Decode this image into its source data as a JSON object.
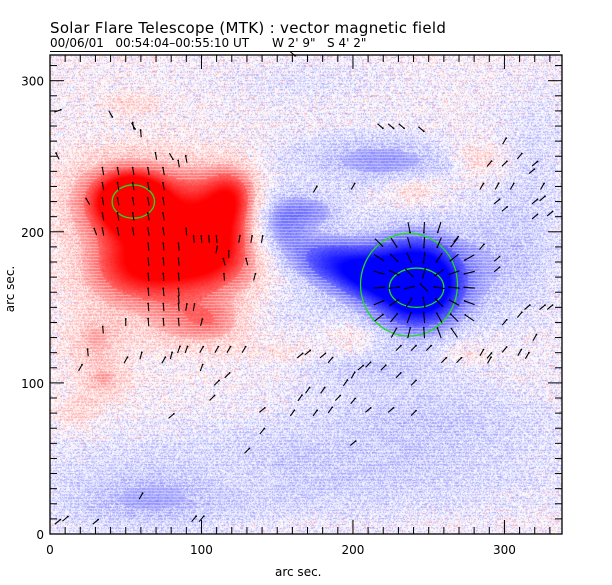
{
  "header": {
    "title": "Solar Flare Telescope (MTK) : vector magnetic field",
    "date": "00/06/01",
    "time_range": "00:54:04–00:55:10 UT",
    "position_w": "W 2' 9\"",
    "position_s": "S 4' 2\""
  },
  "chart_data": {
    "type": "heatmap",
    "title": "Solar Flare Telescope (MTK) : vector magnetic field",
    "xlabel": "arc sec.",
    "ylabel": "arc sec.",
    "xlim": [
      0,
      338
    ],
    "ylim": [
      0,
      317
    ],
    "x_ticks": [
      {
        "value": 0,
        "label": "0"
      },
      {
        "value": 100,
        "label": "100"
      },
      {
        "value": 200,
        "label": "200"
      },
      {
        "value": 300,
        "label": "300"
      }
    ],
    "y_ticks": [
      {
        "value": 0,
        "label": "0"
      },
      {
        "value": 100,
        "label": "100"
      },
      {
        "value": 200,
        "label": "200"
      },
      {
        "value": 300,
        "label": "300"
      }
    ],
    "minor_tick_step": 10,
    "colors": {
      "positive": "#ff0000",
      "negative": "#0000ff",
      "contour": "#22dd22",
      "arrow": "#000000",
      "background": "#ffffff"
    },
    "positive_polarity_regions": [
      {
        "x": 55,
        "y": 220,
        "sx": 14,
        "sy": 12,
        "strength": 1.0
      },
      {
        "x": 40,
        "y": 222,
        "sx": 22,
        "sy": 18,
        "strength": 0.55
      },
      {
        "x": 75,
        "y": 215,
        "sx": 30,
        "sy": 22,
        "strength": 0.6
      },
      {
        "x": 110,
        "y": 200,
        "sx": 22,
        "sy": 25,
        "strength": 0.6
      },
      {
        "x": 55,
        "y": 175,
        "sx": 25,
        "sy": 18,
        "strength": 0.7
      },
      {
        "x": 95,
        "y": 180,
        "sx": 30,
        "sy": 18,
        "strength": 0.55
      },
      {
        "x": 120,
        "y": 225,
        "sx": 12,
        "sy": 14,
        "strength": 0.5
      },
      {
        "x": 85,
        "y": 140,
        "sx": 18,
        "sy": 12,
        "strength": 0.35
      },
      {
        "x": 30,
        "y": 130,
        "sx": 14,
        "sy": 12,
        "strength": 0.35
      },
      {
        "x": 35,
        "y": 102,
        "sx": 12,
        "sy": 10,
        "strength": 0.35
      },
      {
        "x": 18,
        "y": 80,
        "sx": 10,
        "sy": 8,
        "strength": 0.25
      },
      {
        "x": 110,
        "y": 140,
        "sx": 14,
        "sy": 10,
        "strength": 0.35
      },
      {
        "x": 240,
        "y": 228,
        "sx": 14,
        "sy": 7,
        "strength": 0.3
      },
      {
        "x": 283,
        "y": 248,
        "sx": 12,
        "sy": 8,
        "strength": 0.3
      },
      {
        "x": 55,
        "y": 285,
        "sx": 14,
        "sy": 6,
        "strength": 0.2
      },
      {
        "x": 275,
        "y": 120,
        "sx": 12,
        "sy": 6,
        "strength": 0.2
      },
      {
        "x": 150,
        "y": 120,
        "sx": 20,
        "sy": 6,
        "strength": 0.15
      },
      {
        "x": 200,
        "y": 130,
        "sx": 10,
        "sy": 6,
        "strength": 0.2
      },
      {
        "x": 120,
        "y": 40,
        "sx": 20,
        "sy": 8,
        "strength": 0.12
      }
    ],
    "negative_polarity_regions": [
      {
        "x": 245,
        "y": 165,
        "sx": 20,
        "sy": 20,
        "strength": 1.0
      },
      {
        "x": 232,
        "y": 170,
        "sx": 26,
        "sy": 24,
        "strength": 0.55
      },
      {
        "x": 150,
        "y": 205,
        "sx": 14,
        "sy": 16,
        "strength": 0.6
      },
      {
        "x": 180,
        "y": 182,
        "sx": 18,
        "sy": 12,
        "strength": 0.6
      },
      {
        "x": 205,
        "y": 172,
        "sx": 16,
        "sy": 12,
        "strength": 0.55
      },
      {
        "x": 175,
        "y": 215,
        "sx": 14,
        "sy": 8,
        "strength": 0.35
      },
      {
        "x": 230,
        "y": 245,
        "sx": 30,
        "sy": 12,
        "strength": 0.3
      },
      {
        "x": 300,
        "y": 180,
        "sx": 25,
        "sy": 30,
        "strength": 0.28
      },
      {
        "x": 190,
        "y": 250,
        "sx": 40,
        "sy": 12,
        "strength": 0.22
      },
      {
        "x": 170,
        "y": 40,
        "sx": 120,
        "sy": 22,
        "strength": 0.28
      },
      {
        "x": 60,
        "y": 20,
        "sx": 40,
        "sy": 14,
        "strength": 0.25
      },
      {
        "x": 250,
        "y": 80,
        "sx": 60,
        "sy": 18,
        "strength": 0.22
      },
      {
        "x": 210,
        "y": 110,
        "sx": 40,
        "sy": 10,
        "strength": 0.2
      },
      {
        "x": 170,
        "y": 300,
        "sx": 50,
        "sy": 12,
        "strength": 0.12
      },
      {
        "x": 320,
        "y": 250,
        "sx": 20,
        "sy": 40,
        "strength": 0.15
      },
      {
        "x": 160,
        "y": 150,
        "sx": 20,
        "sy": 10,
        "strength": 0.15
      }
    ],
    "contours": [
      {
        "polarity": "positive",
        "cx": 55,
        "cy": 220,
        "rx": 14,
        "ry": 11
      },
      {
        "polarity": "negative",
        "cx": 242,
        "cy": 163,
        "rx": 18,
        "ry": 13
      },
      {
        "polarity": "negative",
        "cx": 237,
        "cy": 165,
        "rx": 32,
        "ry": 34
      }
    ],
    "arrow_fields": [
      {
        "kind": "radial-inward",
        "cx": 245,
        "cy": 165,
        "rx": 38,
        "ry": 42,
        "step": 10,
        "length": 7
      },
      {
        "kind": "uniform",
        "angle": 100,
        "x0": 35,
        "x1": 75,
        "y0": 200,
        "y1": 240,
        "step": 10,
        "length": 5
      },
      {
        "kind": "uniform",
        "angle": 95,
        "x0": 65,
        "x1": 85,
        "y0": 140,
        "y1": 190,
        "step": 10,
        "length": 5
      }
    ],
    "arrows": [
      [
        5,
        250,
        115
      ],
      [
        25,
        220,
        120
      ],
      [
        30,
        200,
        110
      ],
      [
        90,
        200,
        95
      ],
      [
        95,
        195,
        95
      ],
      [
        100,
        195,
        95
      ],
      [
        105,
        195,
        95
      ],
      [
        110,
        195,
        95
      ],
      [
        125,
        195,
        80
      ],
      [
        133,
        195,
        80
      ],
      [
        140,
        195,
        80
      ],
      [
        110,
        188,
        80
      ],
      [
        115,
        180,
        105
      ],
      [
        130,
        180,
        105
      ],
      [
        135,
        170,
        75
      ],
      [
        85,
        155,
        95
      ],
      [
        90,
        150,
        80
      ],
      [
        95,
        150,
        80
      ],
      [
        100,
        140,
        75
      ],
      [
        115,
        170,
        95
      ],
      [
        118,
        185,
        90
      ],
      [
        40,
        278,
        300
      ],
      [
        55,
        270,
        300
      ],
      [
        80,
        250,
        300
      ],
      [
        50,
        140,
        90
      ],
      [
        35,
        135,
        95
      ],
      [
        25,
        120,
        95
      ],
      [
        20,
        110,
        60
      ],
      [
        50,
        115,
        60
      ],
      [
        75,
        115,
        60
      ],
      [
        85,
        122,
        70
      ],
      [
        90,
        122,
        70
      ],
      [
        100,
        122,
        60
      ],
      [
        110,
        122,
        60
      ],
      [
        118,
        122,
        60
      ],
      [
        128,
        122,
        60
      ],
      [
        60,
        118,
        75
      ],
      [
        80,
        118,
        75
      ],
      [
        100,
        110,
        70
      ],
      [
        110,
        100,
        45
      ],
      [
        117,
        105,
        45
      ],
      [
        107,
        90,
        45
      ],
      [
        165,
        118,
        40
      ],
      [
        170,
        120,
        40
      ],
      [
        180,
        118,
        40
      ],
      [
        185,
        115,
        50
      ],
      [
        230,
        123,
        45
      ],
      [
        240,
        123,
        45
      ],
      [
        250,
        123,
        45
      ],
      [
        260,
        115,
        45
      ],
      [
        270,
        115,
        45
      ],
      [
        285,
        120,
        60
      ],
      [
        290,
        115,
        60
      ],
      [
        195,
        100,
        55
      ],
      [
        200,
        105,
        60
      ],
      [
        205,
        110,
        40
      ],
      [
        210,
        112,
        45
      ],
      [
        220,
        110,
        45
      ],
      [
        230,
        105,
        45
      ],
      [
        240,
        100,
        45
      ],
      [
        165,
        90,
        55
      ],
      [
        170,
        95,
        55
      ],
      [
        180,
        95,
        55
      ],
      [
        190,
        90,
        45
      ],
      [
        140,
        82,
        40
      ],
      [
        160,
        80,
        55
      ],
      [
        175,
        80,
        55
      ],
      [
        185,
        82,
        55
      ],
      [
        200,
        88,
        50
      ],
      [
        210,
        82,
        40
      ],
      [
        225,
        82,
        40
      ],
      [
        240,
        80,
        45
      ],
      [
        80,
        78,
        40
      ],
      [
        140,
        68,
        50
      ],
      [
        130,
        55,
        45
      ],
      [
        200,
        60,
        40
      ],
      [
        218,
        270,
        320
      ],
      [
        225,
        270,
        320
      ],
      [
        232,
        270,
        320
      ],
      [
        245,
        268,
        320
      ],
      [
        160,
        318,
        320
      ],
      [
        300,
        260,
        60
      ],
      [
        310,
        250,
        50
      ],
      [
        290,
        245,
        50
      ],
      [
        300,
        245,
        45
      ],
      [
        320,
        245,
        40
      ],
      [
        318,
        240,
        40
      ],
      [
        285,
        230,
        60
      ],
      [
        295,
        230,
        60
      ],
      [
        305,
        230,
        60
      ],
      [
        325,
        230,
        60
      ],
      [
        295,
        220,
        40
      ],
      [
        300,
        215,
        40
      ],
      [
        320,
        220,
        40
      ],
      [
        325,
        222,
        40
      ],
      [
        320,
        210,
        40
      ],
      [
        330,
        212,
        40
      ],
      [
        315,
        150,
        40
      ],
      [
        325,
        150,
        40
      ],
      [
        330,
        150,
        40
      ],
      [
        295,
        175,
        40
      ],
      [
        295,
        182,
        40
      ],
      [
        285,
        190,
        50
      ],
      [
        268,
        195,
        50
      ],
      [
        175,
        228,
        60
      ],
      [
        200,
        230,
        60
      ],
      [
        290,
        118,
        50
      ],
      [
        300,
        122,
        50
      ],
      [
        310,
        120,
        60
      ],
      [
        315,
        118,
        60
      ],
      [
        320,
        130,
        60
      ],
      [
        300,
        140,
        50
      ],
      [
        310,
        145,
        50
      ],
      [
        5,
        8,
        40
      ],
      [
        10,
        10,
        40
      ],
      [
        30,
        8,
        40
      ],
      [
        60,
        25,
        60
      ],
      [
        95,
        10,
        50
      ],
      [
        100,
        10,
        50
      ],
      [
        55,
        270,
        100
      ],
      [
        60,
        265,
        95
      ],
      [
        70,
        250,
        100
      ],
      [
        85,
        245,
        100
      ],
      [
        90,
        248,
        100
      ],
      [
        5,
        280,
        20
      ]
    ]
  }
}
